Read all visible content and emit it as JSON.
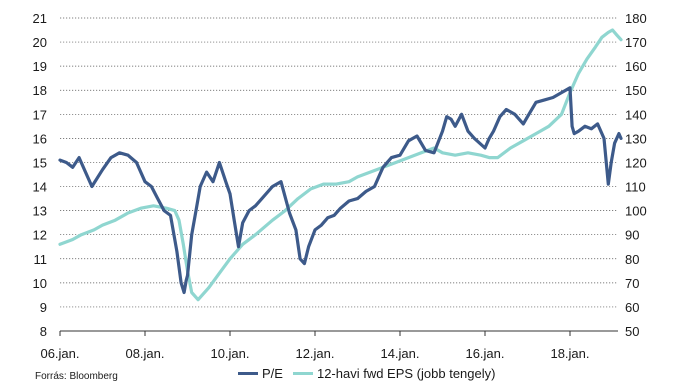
{
  "chart_data": {
    "type": "line",
    "title": "",
    "x_ticks": [
      "06.jan.",
      "08.jan.",
      "10.jan.",
      "12.jan.",
      "14.jan.",
      "16.jan.",
      "18.jan."
    ],
    "x_range": [
      2006.0,
      2019.2
    ],
    "ylim_left": [
      8,
      21
    ],
    "y_ticks_left": [
      8,
      9,
      10,
      11,
      12,
      13,
      14,
      15,
      16,
      17,
      18,
      19,
      20,
      21
    ],
    "ylim_right": [
      50,
      180
    ],
    "y_ticks_right": [
      50,
      60,
      70,
      80,
      90,
      100,
      110,
      120,
      130,
      140,
      150,
      160,
      170,
      180
    ],
    "grid": "horizontal dotted",
    "legend_position": "bottom",
    "series": [
      {
        "name": "P/E",
        "axis": "left",
        "color": "#3d5a8a",
        "x": [
          2006.0,
          2006.15,
          2006.3,
          2006.45,
          2006.6,
          2006.75,
          2007.0,
          2007.2,
          2007.4,
          2007.6,
          2007.8,
          2008.0,
          2008.15,
          2008.3,
          2008.45,
          2008.6,
          2008.75,
          2008.85,
          2008.92,
          2008.97,
          2009.0,
          2009.1,
          2009.2,
          2009.3,
          2009.45,
          2009.6,
          2009.75,
          2009.9,
          2010.0,
          2010.1,
          2010.2,
          2010.3,
          2010.45,
          2010.6,
          2010.75,
          2011.0,
          2011.2,
          2011.4,
          2011.55,
          2011.65,
          2011.75,
          2011.85,
          2012.0,
          2012.15,
          2012.3,
          2012.45,
          2012.6,
          2012.8,
          2013.0,
          2013.2,
          2013.4,
          2013.6,
          2013.8,
          2014.0,
          2014.2,
          2014.4,
          2014.6,
          2014.8,
          2015.0,
          2015.1,
          2015.2,
          2015.3,
          2015.45,
          2015.6,
          2015.75,
          2016.0,
          2016.1,
          2016.2,
          2016.35,
          2016.5,
          2016.7,
          2016.9,
          2017.0,
          2017.2,
          2017.4,
          2017.6,
          2017.8,
          2018.0,
          2018.05,
          2018.1,
          2018.2,
          2018.35,
          2018.5,
          2018.65,
          2018.8,
          2018.9,
          2018.97,
          2019.05,
          2019.15,
          2019.2
        ],
        "values": [
          15.1,
          15.0,
          14.8,
          15.2,
          14.6,
          14.0,
          14.7,
          15.2,
          15.4,
          15.3,
          15.0,
          14.2,
          14.0,
          13.5,
          13.0,
          12.8,
          11.3,
          10.0,
          9.6,
          10.1,
          10.3,
          12.0,
          13.0,
          14.0,
          14.6,
          14.2,
          15.0,
          14.2,
          13.7,
          12.6,
          11.5,
          12.5,
          13.0,
          13.2,
          13.5,
          14.0,
          14.2,
          12.9,
          12.2,
          11.0,
          10.8,
          11.5,
          12.2,
          12.4,
          12.7,
          12.8,
          13.1,
          13.4,
          13.5,
          13.8,
          14.0,
          14.8,
          15.2,
          15.3,
          15.9,
          16.1,
          15.5,
          15.4,
          16.3,
          16.9,
          16.8,
          16.5,
          17.0,
          16.3,
          16.0,
          15.6,
          16.0,
          16.3,
          16.9,
          17.2,
          17.0,
          16.6,
          16.9,
          17.5,
          17.6,
          17.7,
          17.9,
          18.1,
          16.5,
          16.2,
          16.3,
          16.5,
          16.4,
          16.6,
          16.0,
          14.1,
          15.0,
          15.8,
          16.2,
          16.0
        ]
      },
      {
        "name": "12-havi fwd EPS (jobb tengely)",
        "axis": "right",
        "color": "#8fd6d0",
        "x": [
          2006.0,
          2006.15,
          2006.3,
          2006.5,
          2006.8,
          2007.0,
          2007.3,
          2007.6,
          2007.9,
          2008.2,
          2008.5,
          2008.7,
          2008.8,
          2008.9,
          2009.0,
          2009.1,
          2009.25,
          2009.5,
          2009.75,
          2010.0,
          2010.3,
          2010.6,
          2011.0,
          2011.3,
          2011.6,
          2011.9,
          2012.2,
          2012.5,
          2012.8,
          2013.0,
          2013.3,
          2013.6,
          2013.9,
          2014.2,
          2014.5,
          2014.8,
          2015.0,
          2015.3,
          2015.6,
          2015.9,
          2016.1,
          2016.3,
          2016.6,
          2016.9,
          2017.2,
          2017.5,
          2017.8,
          2018.0,
          2018.2,
          2018.4,
          2018.6,
          2018.75,
          2018.9,
          2019.0,
          2019.1,
          2019.2
        ],
        "values": [
          86,
          87,
          88,
          90,
          92,
          94,
          96,
          99,
          101,
          102,
          101,
          100,
          96,
          86,
          75,
          66,
          63,
          68,
          74,
          80,
          86,
          90,
          96,
          100,
          105,
          109,
          111,
          111,
          112,
          114,
          116,
          118,
          120,
          122,
          124,
          126,
          124,
          123,
          124,
          123,
          122,
          122,
          126,
          129,
          132,
          135,
          140,
          149,
          157,
          163,
          168,
          172,
          174,
          175,
          173,
          171
        ]
      }
    ],
    "source": "Forrás: Bloomberg"
  }
}
